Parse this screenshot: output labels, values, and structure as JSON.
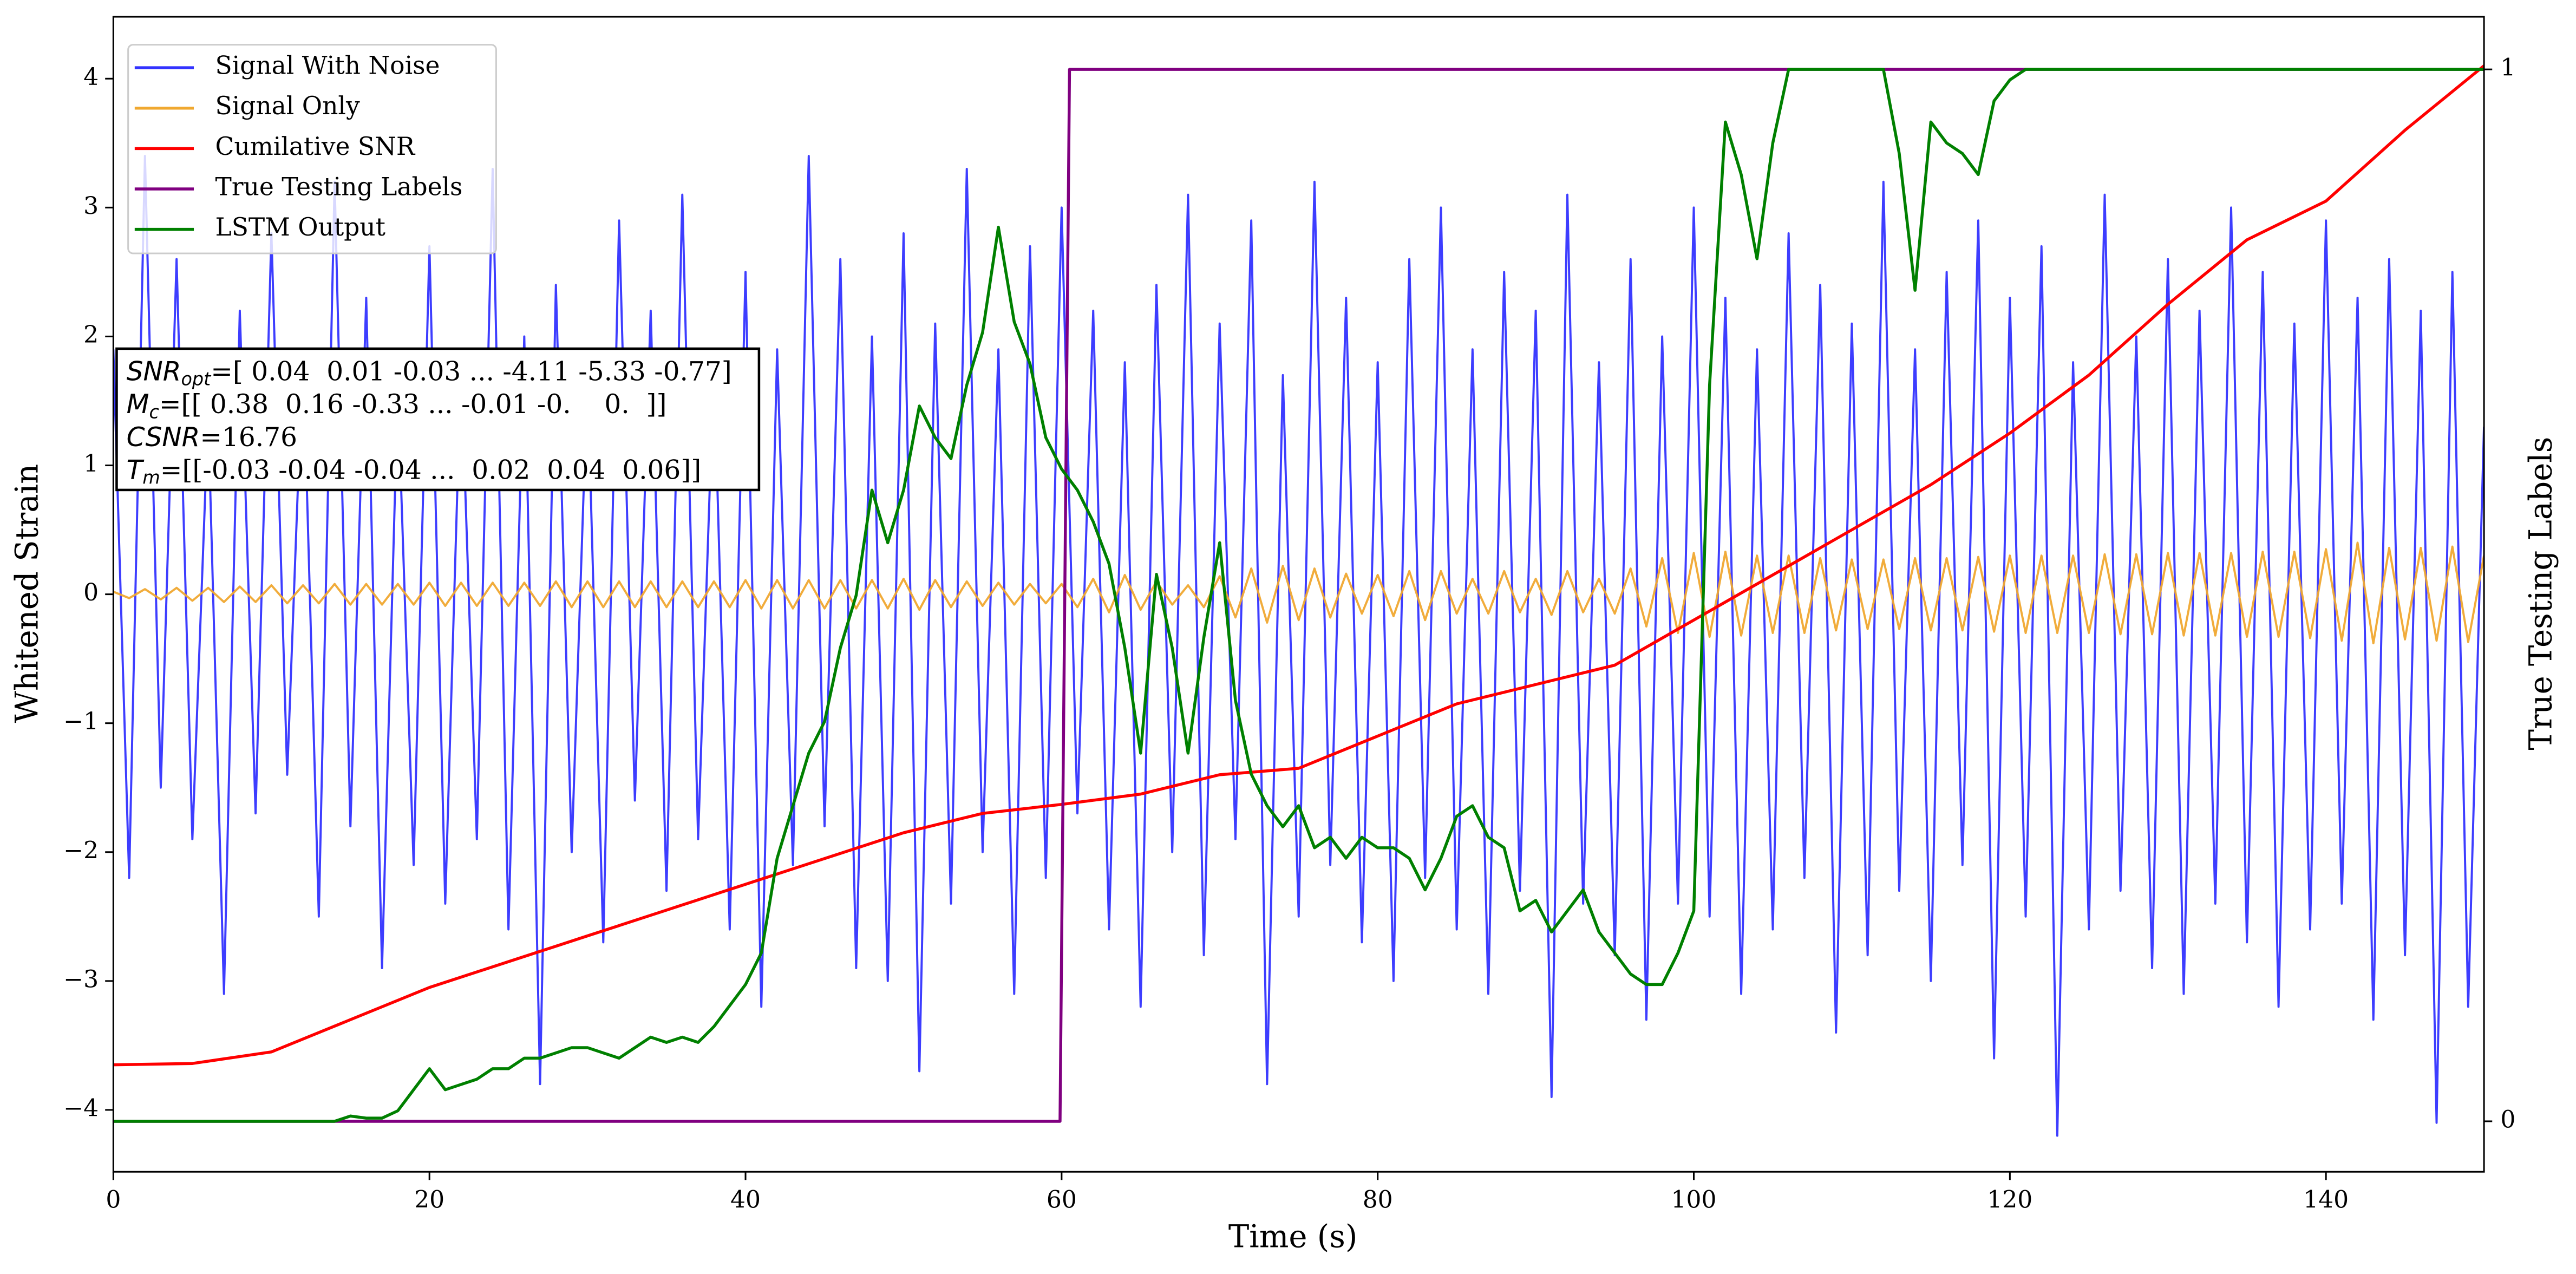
{
  "chart_data": {
    "type": "line",
    "xlabel": "Time (s)",
    "ylabel": "Whitened Strain",
    "y2label": "True Testing Labels",
    "xlim": [
      0,
      150
    ],
    "xticks": [
      0,
      20,
      40,
      60,
      80,
      100,
      120,
      140
    ],
    "ylim": [
      -4.48,
      4.48
    ],
    "yticks": [
      -4,
      -3,
      -2,
      -1,
      0,
      1,
      2,
      3,
      4
    ],
    "y2lim": [
      -0.048,
      1.05
    ],
    "y2ticks": [
      0,
      1
    ],
    "legend": "upper left",
    "x": [
      0,
      1,
      2,
      3,
      4,
      5,
      6,
      7,
      8,
      9,
      10,
      11,
      12,
      13,
      14,
      15,
      16,
      17,
      18,
      19,
      20,
      21,
      22,
      23,
      24,
      25,
      26,
      27,
      28,
      29,
      30,
      31,
      32,
      33,
      34,
      35,
      36,
      37,
      38,
      39,
      40,
      41,
      42,
      43,
      44,
      45,
      46,
      47,
      48,
      49,
      50,
      51,
      52,
      53,
      54,
      55,
      56,
      57,
      58,
      59,
      60,
      61,
      62,
      63,
      64,
      65,
      66,
      67,
      68,
      69,
      70,
      71,
      72,
      73,
      74,
      75,
      76,
      77,
      78,
      79,
      80,
      81,
      82,
      83,
      84,
      85,
      86,
      87,
      88,
      89,
      90,
      91,
      92,
      93,
      94,
      95,
      96,
      97,
      98,
      99,
      100,
      101,
      102,
      103,
      104,
      105,
      106,
      107,
      108,
      109,
      110,
      111,
      112,
      113,
      114,
      115,
      116,
      117,
      118,
      119,
      120,
      121,
      122,
      123,
      124,
      125,
      126,
      127,
      128,
      129,
      130,
      131,
      132,
      133,
      134,
      135,
      136,
      137,
      138,
      139,
      140,
      141,
      142,
      143,
      144,
      145,
      146,
      147,
      148,
      149,
      150
    ],
    "series": [
      {
        "name": "Signal With Noise",
        "color": "#3333ff",
        "values": [
          1.9,
          -2.2,
          3.4,
          -1.5,
          2.6,
          -1.9,
          1.4,
          -3.1,
          2.2,
          -1.7,
          2.8,
          -1.4,
          1.9,
          -2.5,
          3.2,
          -1.8,
          2.3,
          -2.9,
          1.6,
          -2.1,
          2.7,
          -2.4,
          1.8,
          -1.9,
          3.3,
          -2.6,
          2.0,
          -3.8,
          2.4,
          -2.0,
          1.7,
          -2.7,
          2.9,
          -1.6,
          2.2,
          -2.3,
          3.1,
          -1.9,
          1.8,
          -2.6,
          2.5,
          -3.2,
          1.9,
          -2.1,
          3.4,
          -1.8,
          2.6,
          -2.9,
          2.0,
          -3.0,
          2.8,
          -3.7,
          2.1,
          -2.4,
          3.3,
          -2.0,
          1.9,
          -3.1,
          2.7,
          -2.2,
          3.0,
          -1.7,
          2.2,
          -2.6,
          1.8,
          -3.2,
          2.4,
          -2.0,
          3.1,
          -2.8,
          2.1,
          -1.9,
          2.9,
          -3.8,
          1.7,
          -2.5,
          3.2,
          -2.1,
          2.3,
          -2.7,
          1.8,
          -3.0,
          2.6,
          -2.2,
          3.0,
          -2.6,
          1.9,
          -3.1,
          2.5,
          -2.3,
          2.2,
          -3.9,
          3.1,
          -2.4,
          1.8,
          -2.8,
          2.6,
          -3.3,
          2.0,
          -2.4,
          3.0,
          -2.5,
          2.3,
          -3.1,
          1.9,
          -2.6,
          2.8,
          -2.2,
          2.4,
          -3.4,
          2.1,
          -2.8,
          3.2,
          -2.3,
          1.9,
          -3.0,
          2.5,
          -2.1,
          2.9,
          -3.6,
          2.3,
          -2.5,
          2.7,
          -4.2,
          1.8,
          -2.6,
          3.1,
          -2.3,
          2.0,
          -2.9,
          2.6,
          -3.1,
          2.2,
          -2.4,
          3.0,
          -2.7,
          2.5,
          -3.2,
          2.1,
          -2.6,
          2.9,
          -2.4,
          2.3,
          -3.3,
          2.6,
          -2.8,
          2.2,
          -4.1,
          2.5,
          -3.2,
          1.3
        ]
      },
      {
        "name": "Signal Only",
        "color": "#f0a830",
        "values": [
          0.02,
          -0.03,
          0.04,
          -0.04,
          0.05,
          -0.05,
          0.05,
          -0.06,
          0.06,
          -0.06,
          0.07,
          -0.07,
          0.07,
          -0.07,
          0.08,
          -0.08,
          0.08,
          -0.08,
          0.08,
          -0.08,
          0.09,
          -0.09,
          0.09,
          -0.09,
          0.09,
          -0.09,
          0.09,
          -0.09,
          0.1,
          -0.1,
          0.1,
          -0.1,
          0.1,
          -0.1,
          0.1,
          -0.1,
          0.1,
          -0.1,
          0.1,
          -0.1,
          0.11,
          -0.11,
          0.11,
          -0.11,
          0.11,
          -0.11,
          0.11,
          -0.11,
          0.11,
          -0.11,
          0.12,
          -0.12,
          0.11,
          -0.1,
          0.1,
          -0.09,
          0.09,
          -0.08,
          0.08,
          -0.07,
          0.08,
          -0.1,
          0.12,
          -0.14,
          0.15,
          -0.12,
          0.1,
          -0.08,
          0.07,
          -0.1,
          0.14,
          -0.18,
          0.2,
          -0.22,
          0.22,
          -0.2,
          0.2,
          -0.18,
          0.16,
          -0.15,
          0.15,
          -0.17,
          0.18,
          -0.2,
          0.18,
          -0.15,
          0.12,
          -0.15,
          0.18,
          -0.14,
          0.12,
          -0.16,
          0.18,
          -0.14,
          0.12,
          -0.15,
          0.2,
          -0.25,
          0.28,
          -0.3,
          0.32,
          -0.33,
          0.33,
          -0.32,
          0.3,
          -0.3,
          0.3,
          -0.3,
          0.28,
          -0.28,
          0.27,
          -0.27,
          0.27,
          -0.27,
          0.28,
          -0.28,
          0.28,
          -0.28,
          0.29,
          -0.29,
          0.3,
          -0.3,
          0.3,
          -0.3,
          0.3,
          -0.3,
          0.31,
          -0.31,
          0.31,
          -0.31,
          0.32,
          -0.32,
          0.32,
          -0.32,
          0.32,
          -0.33,
          0.33,
          -0.33,
          0.33,
          -0.34,
          0.35,
          -0.36,
          0.4,
          -0.38,
          0.36,
          -0.35,
          0.36,
          -0.36,
          0.37,
          -0.37,
          0.3
        ]
      },
      {
        "name": "Cumilative SNR",
        "color": "#ff0000",
        "x": [
          0,
          5,
          10,
          15,
          20,
          25,
          30,
          35,
          40,
          45,
          50,
          55,
          60,
          65,
          70,
          75,
          80,
          85,
          90,
          95,
          100,
          105,
          110,
          115,
          120,
          125,
          130,
          135,
          140,
          145,
          150
        ],
        "values": [
          -3.65,
          -3.64,
          -3.55,
          -3.3,
          -3.05,
          -2.85,
          -2.65,
          -2.45,
          -2.25,
          -2.05,
          -1.85,
          -1.7,
          -1.63,
          -1.55,
          -1.4,
          -1.35,
          -1.1,
          -0.85,
          -0.7,
          -0.55,
          -0.2,
          0.15,
          0.5,
          0.85,
          1.25,
          1.7,
          2.25,
          2.75,
          3.05,
          3.6,
          4.1
        ]
      },
      {
        "name": "True Testing Labels",
        "color": "#800080",
        "axis": "y2",
        "x": [
          0,
          59.9,
          60.5,
          150
        ],
        "values": [
          0,
          0,
          1,
          1
        ]
      },
      {
        "name": "LSTM Output",
        "color": "#008000",
        "axis": "y2",
        "values": [
          0,
          0,
          0,
          0,
          0,
          0,
          0,
          0,
          0,
          0,
          0,
          0,
          0,
          0,
          0,
          0.005,
          0.003,
          0.003,
          0.01,
          0.03,
          0.05,
          0.03,
          0.035,
          0.04,
          0.05,
          0.05,
          0.06,
          0.06,
          0.065,
          0.07,
          0.07,
          0.065,
          0.06,
          0.07,
          0.08,
          0.075,
          0.08,
          0.075,
          0.09,
          0.11,
          0.13,
          0.16,
          0.25,
          0.3,
          0.35,
          0.38,
          0.45,
          0.5,
          0.6,
          0.55,
          0.6,
          0.68,
          0.65,
          0.63,
          0.7,
          0.75,
          0.85,
          0.76,
          0.72,
          0.65,
          0.62,
          0.6,
          0.57,
          0.53,
          0.45,
          0.35,
          0.52,
          0.45,
          0.35,
          0.46,
          0.55,
          0.4,
          0.33,
          0.3,
          0.28,
          0.3,
          0.26,
          0.27,
          0.25,
          0.27,
          0.26,
          0.26,
          0.25,
          0.22,
          0.25,
          0.29,
          0.3,
          0.27,
          0.26,
          0.2,
          0.21,
          0.18,
          0.2,
          0.22,
          0.18,
          0.16,
          0.14,
          0.13,
          0.13,
          0.16,
          0.2,
          0.7,
          0.95,
          0.9,
          0.82,
          0.93,
          1,
          1,
          1,
          1,
          1,
          1,
          1,
          0.92,
          0.79,
          0.95,
          0.93,
          0.92,
          0.9,
          0.97,
          0.99,
          1,
          1,
          1,
          1,
          1,
          1,
          1,
          1,
          1,
          1,
          1,
          1,
          1,
          1,
          1,
          1,
          1,
          1,
          1,
          1,
          1,
          1,
          1,
          1,
          1,
          1,
          1,
          1,
          1,
          1
        ]
      }
    ],
    "annotation": [
      {
        "symbol": "SNR",
        "sub": "opt",
        "text": "=[ 0.04  0.01 -0.03 ... -4.11 -5.33 -0.77]"
      },
      {
        "symbol": "M",
        "sub": "c",
        "text": "=[[ 0.38  0.16 -0.33 ... -0.01 -0.    0.  ]]"
      },
      {
        "symbol": "CSNR",
        "sub": null,
        "text": "=16.76"
      },
      {
        "symbol": "T",
        "sub": "m",
        "text": "=[[-0.03 -0.04 -0.04 ...  0.02  0.04  0.06]]"
      }
    ]
  }
}
